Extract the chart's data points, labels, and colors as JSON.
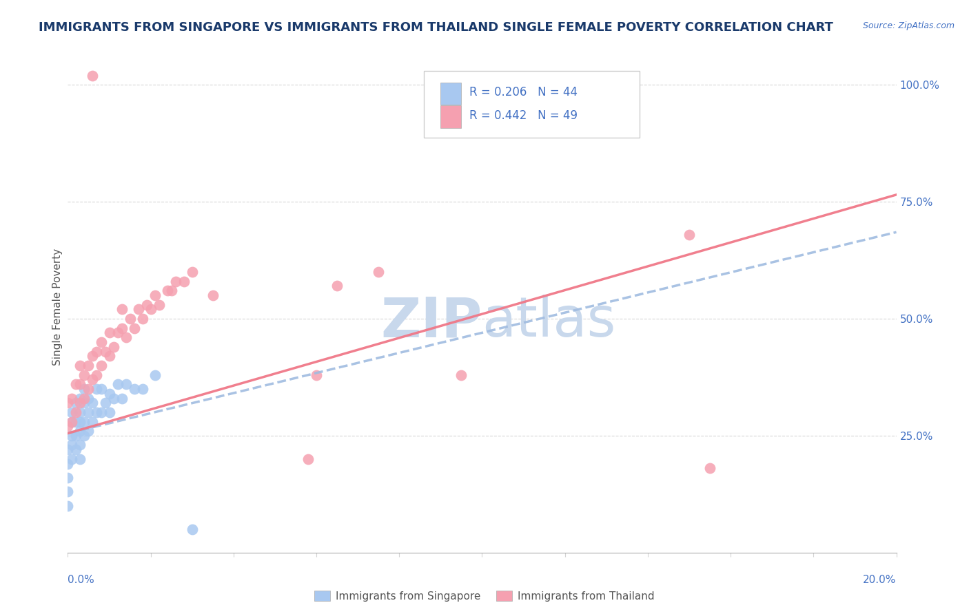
{
  "title": "IMMIGRANTS FROM SINGAPORE VS IMMIGRANTS FROM THAILAND SINGLE FEMALE POVERTY CORRELATION CHART",
  "source_text": "Source: ZipAtlas.com",
  "series1_label": "Immigrants from Singapore",
  "series2_label": "Immigrants from Thailand",
  "R1": 0.206,
  "N1": 44,
  "R2": 0.442,
  "N2": 49,
  "color1": "#a8c8f0",
  "color2": "#f5a0b0",
  "trendline1_color": "#a0bce0",
  "trendline2_color": "#f07888",
  "watermark_color": "#c8d8ec",
  "title_color": "#1a3a6b",
  "title_fontsize": 13,
  "axis_label_color": "#4472c4",
  "xmin": 0.0,
  "xmax": 0.2,
  "ymin": 0.0,
  "ymax": 1.05,
  "trendline1_x0": 0.0,
  "trendline1_y0": 0.255,
  "trendline1_x1": 0.2,
  "trendline1_y1": 0.685,
  "trendline2_x0": 0.0,
  "trendline2_y0": 0.255,
  "trendline2_x1": 0.2,
  "trendline2_y1": 0.765,
  "sg_x": [
    0.0,
    0.0,
    0.0,
    0.0,
    0.0,
    0.001,
    0.001,
    0.001,
    0.001,
    0.001,
    0.002,
    0.002,
    0.002,
    0.002,
    0.003,
    0.003,
    0.003,
    0.003,
    0.003,
    0.003,
    0.004,
    0.004,
    0.004,
    0.004,
    0.005,
    0.005,
    0.005,
    0.006,
    0.006,
    0.007,
    0.007,
    0.008,
    0.008,
    0.009,
    0.01,
    0.01,
    0.011,
    0.012,
    0.013,
    0.014,
    0.016,
    0.018,
    0.021,
    0.03
  ],
  "sg_y": [
    0.1,
    0.13,
    0.16,
    0.19,
    0.22,
    0.2,
    0.23,
    0.25,
    0.28,
    0.3,
    0.22,
    0.25,
    0.28,
    0.32,
    0.2,
    0.23,
    0.26,
    0.28,
    0.3,
    0.33,
    0.25,
    0.28,
    0.32,
    0.35,
    0.26,
    0.3,
    0.33,
    0.28,
    0.32,
    0.3,
    0.35,
    0.3,
    0.35,
    0.32,
    0.3,
    0.34,
    0.33,
    0.36,
    0.33,
    0.36,
    0.35,
    0.35,
    0.38,
    0.05
  ],
  "th_x": [
    0.0,
    0.0,
    0.001,
    0.001,
    0.002,
    0.002,
    0.003,
    0.003,
    0.003,
    0.004,
    0.004,
    0.005,
    0.005,
    0.006,
    0.006,
    0.007,
    0.007,
    0.008,
    0.008,
    0.009,
    0.01,
    0.01,
    0.011,
    0.012,
    0.013,
    0.014,
    0.015,
    0.016,
    0.017,
    0.018,
    0.019,
    0.02,
    0.021,
    0.022,
    0.024,
    0.025,
    0.026,
    0.028,
    0.03,
    0.035,
    0.06,
    0.065,
    0.075,
    0.095,
    0.15,
    0.006,
    0.013,
    0.058,
    0.155
  ],
  "th_y": [
    0.27,
    0.32,
    0.28,
    0.33,
    0.3,
    0.36,
    0.32,
    0.36,
    0.4,
    0.33,
    0.38,
    0.35,
    0.4,
    0.37,
    0.42,
    0.38,
    0.43,
    0.4,
    0.45,
    0.43,
    0.42,
    0.47,
    0.44,
    0.47,
    0.48,
    0.46,
    0.5,
    0.48,
    0.52,
    0.5,
    0.53,
    0.52,
    0.55,
    0.53,
    0.56,
    0.56,
    0.58,
    0.58,
    0.6,
    0.55,
    0.38,
    0.57,
    0.6,
    0.38,
    0.68,
    1.02,
    0.52,
    0.2,
    0.18
  ]
}
